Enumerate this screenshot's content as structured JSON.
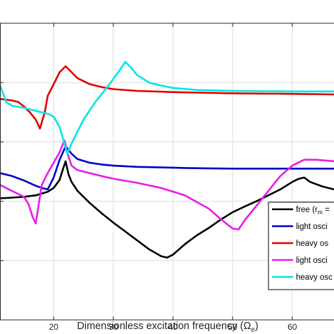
{
  "chart_data": {
    "type": "line",
    "title": "",
    "xlabel": "Dimensionless excitation frequency (",
    "xlabel_symbol": "Ω",
    "xlabel_subscript": "e",
    "xlabel_close": ")",
    "ylabel": "",
    "xlim": [
      11,
      67
    ],
    "ylim": [
      0,
      10
    ],
    "xticks": [
      20,
      30,
      40,
      50,
      60
    ],
    "xtick_labels": [
      "20",
      "30",
      "40",
      "50",
      "60"
    ],
    "yticks": [
      2,
      4,
      6,
      8
    ],
    "grid": true,
    "legend_position": "bottom-right",
    "series": [
      {
        "name": "free (r",
        "name_subscript": "m",
        "name_rest": " =",
        "color": "#000000",
        "x": [
          11,
          13,
          15,
          17,
          19,
          20,
          21,
          21.5,
          22,
          22.5,
          23,
          24,
          26,
          28,
          30,
          32,
          34,
          36,
          38,
          39,
          40,
          42,
          44,
          46,
          48,
          50,
          52,
          54,
          56,
          58,
          60,
          61,
          62,
          63,
          65,
          67
        ],
        "y": [
          4.1,
          4.12,
          4.15,
          4.2,
          4.32,
          4.45,
          4.72,
          5.05,
          5.35,
          4.9,
          4.65,
          4.35,
          3.95,
          3.6,
          3.28,
          2.98,
          2.68,
          2.38,
          2.15,
          2.1,
          2.2,
          2.55,
          2.85,
          3.1,
          3.38,
          3.63,
          3.82,
          4.0,
          4.2,
          4.4,
          4.65,
          4.75,
          4.8,
          4.65,
          4.5,
          4.4
        ]
      },
      {
        "name": "light osci",
        "color": "#0000c8",
        "x": [
          11,
          13,
          15,
          17,
          18,
          19,
          20,
          21,
          22,
          23,
          24,
          26,
          28,
          30,
          34,
          38,
          42,
          46,
          50,
          55,
          60,
          64,
          67
        ],
        "y": [
          4.95,
          4.85,
          4.7,
          4.52,
          4.45,
          4.4,
          4.8,
          5.4,
          5.85,
          5.6,
          5.42,
          5.3,
          5.24,
          5.2,
          5.16,
          5.14,
          5.12,
          5.11,
          5.1,
          5.1,
          5.1,
          5.1,
          5.1
        ]
      },
      {
        "name": "heavy os",
        "color": "#e00000",
        "x": [
          11,
          13,
          14,
          15,
          16,
          17,
          17.7,
          18.5,
          19,
          20,
          21,
          22,
          23,
          24,
          26,
          28,
          30,
          34,
          40,
          50,
          60,
          67
        ],
        "y": [
          7.45,
          7.4,
          7.35,
          7.2,
          7.0,
          6.75,
          6.45,
          7.0,
          7.55,
          7.95,
          8.35,
          8.55,
          8.35,
          8.15,
          7.95,
          7.85,
          7.78,
          7.72,
          7.68,
          7.64,
          7.62,
          7.6
        ]
      },
      {
        "name": "light osci",
        "color": "#e61ee6",
        "x": [
          11,
          12,
          13,
          14,
          15,
          15.8,
          16.5,
          17,
          17.5,
          18,
          19,
          20,
          21,
          21.8,
          22.5,
          23,
          24,
          26,
          28,
          30,
          34,
          38,
          42,
          46,
          48,
          50,
          51,
          52,
          54,
          56,
          58,
          60,
          62,
          64,
          67
        ],
        "y": [
          4.55,
          4.45,
          4.35,
          4.25,
          4.15,
          3.9,
          3.45,
          3.25,
          3.9,
          4.55,
          4.95,
          5.3,
          5.65,
          6.05,
          5.5,
          5.2,
          5.05,
          4.95,
          4.85,
          4.76,
          4.62,
          4.45,
          4.2,
          3.75,
          3.4,
          3.08,
          3.05,
          3.35,
          3.85,
          4.35,
          4.85,
          5.2,
          5.4,
          5.4,
          5.35
        ]
      },
      {
        "name": "heavy osc",
        "color": "#00e6e6",
        "x": [
          11,
          11.5,
          12,
          13,
          15,
          17,
          19,
          20,
          21,
          22,
          22.3,
          23,
          25,
          27,
          29,
          31,
          32,
          33,
          34,
          36,
          38,
          40,
          44,
          50,
          60,
          67
        ],
        "y": [
          7.9,
          7.65,
          7.35,
          7.22,
          7.15,
          7.05,
          6.95,
          6.85,
          6.5,
          5.8,
          5.6,
          5.95,
          6.75,
          7.35,
          7.85,
          8.4,
          8.7,
          8.5,
          8.25,
          8.0,
          7.9,
          7.82,
          7.75,
          7.72,
          7.7,
          7.7
        ]
      }
    ]
  }
}
